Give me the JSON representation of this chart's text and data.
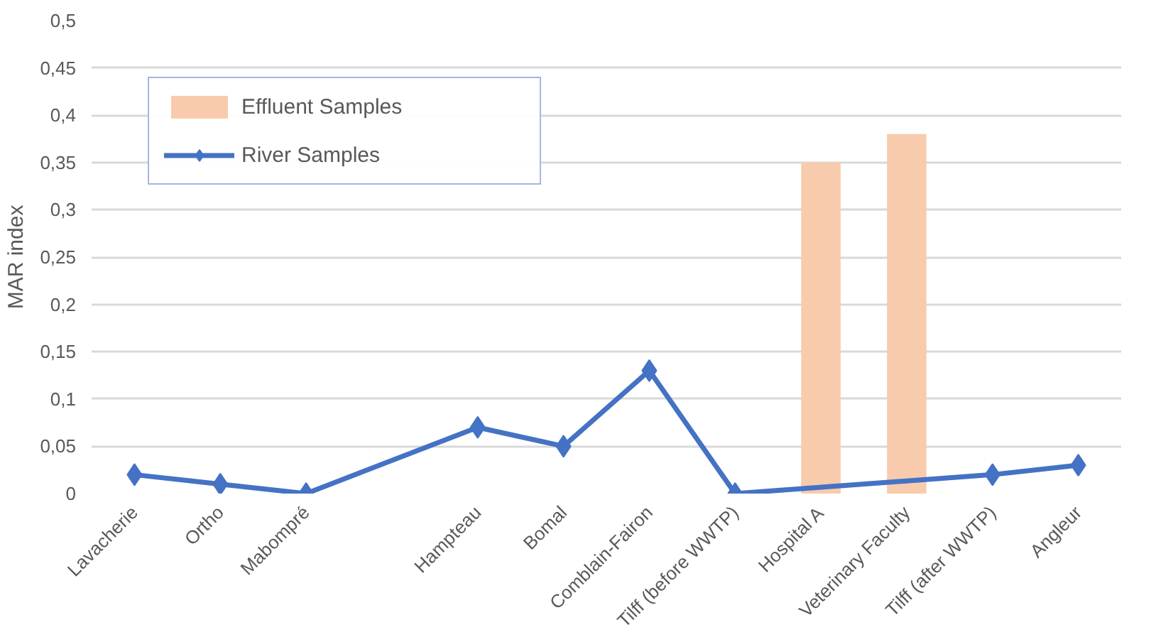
{
  "chart_data": {
    "type": "bar",
    "ylabel": "MAR index",
    "categories": [
      "Lavacherie",
      "Ortho",
      "Mabompré",
      null,
      "Hampteau",
      "Bomal",
      "Comblain-Fairon",
      "Tilff (before WWTP)",
      "Hospital A",
      "Veterinary Faculty",
      "Tilff (after WWTP)",
      "Angleur"
    ],
    "series": [
      {
        "name": "Effluent Samples",
        "color": "#f8cbad",
        "values": [
          null,
          null,
          null,
          null,
          null,
          null,
          null,
          null,
          0.35,
          0.38,
          null,
          null
        ]
      },
      {
        "name": "River Samples",
        "type": "line",
        "color": "#4472c4",
        "values": [
          0.02,
          0.01,
          0,
          null,
          0.07,
          0.05,
          0.13,
          0,
          null,
          null,
          0.02,
          0.03
        ]
      }
    ],
    "ylim": [
      0,
      0.5
    ],
    "yticks": [
      {
        "value": 0,
        "label": "0"
      },
      {
        "value": 0.05,
        "label": "0,05"
      },
      {
        "value": 0.1,
        "label": "0,1"
      },
      {
        "value": 0.15,
        "label": "0,15"
      },
      {
        "value": 0.2,
        "label": "0,2"
      },
      {
        "value": 0.25,
        "label": "0,25"
      },
      {
        "value": 0.3,
        "label": "0,3"
      },
      {
        "value": 0.35,
        "label": "0,35"
      },
      {
        "value": 0.4,
        "label": "0,4"
      },
      {
        "value": 0.45,
        "label": "0,45"
      },
      {
        "value": 0.5,
        "label": "0,5"
      }
    ],
    "grid": "y",
    "legend": "top left",
    "marker": "diamond",
    "line_style": "solid"
  }
}
